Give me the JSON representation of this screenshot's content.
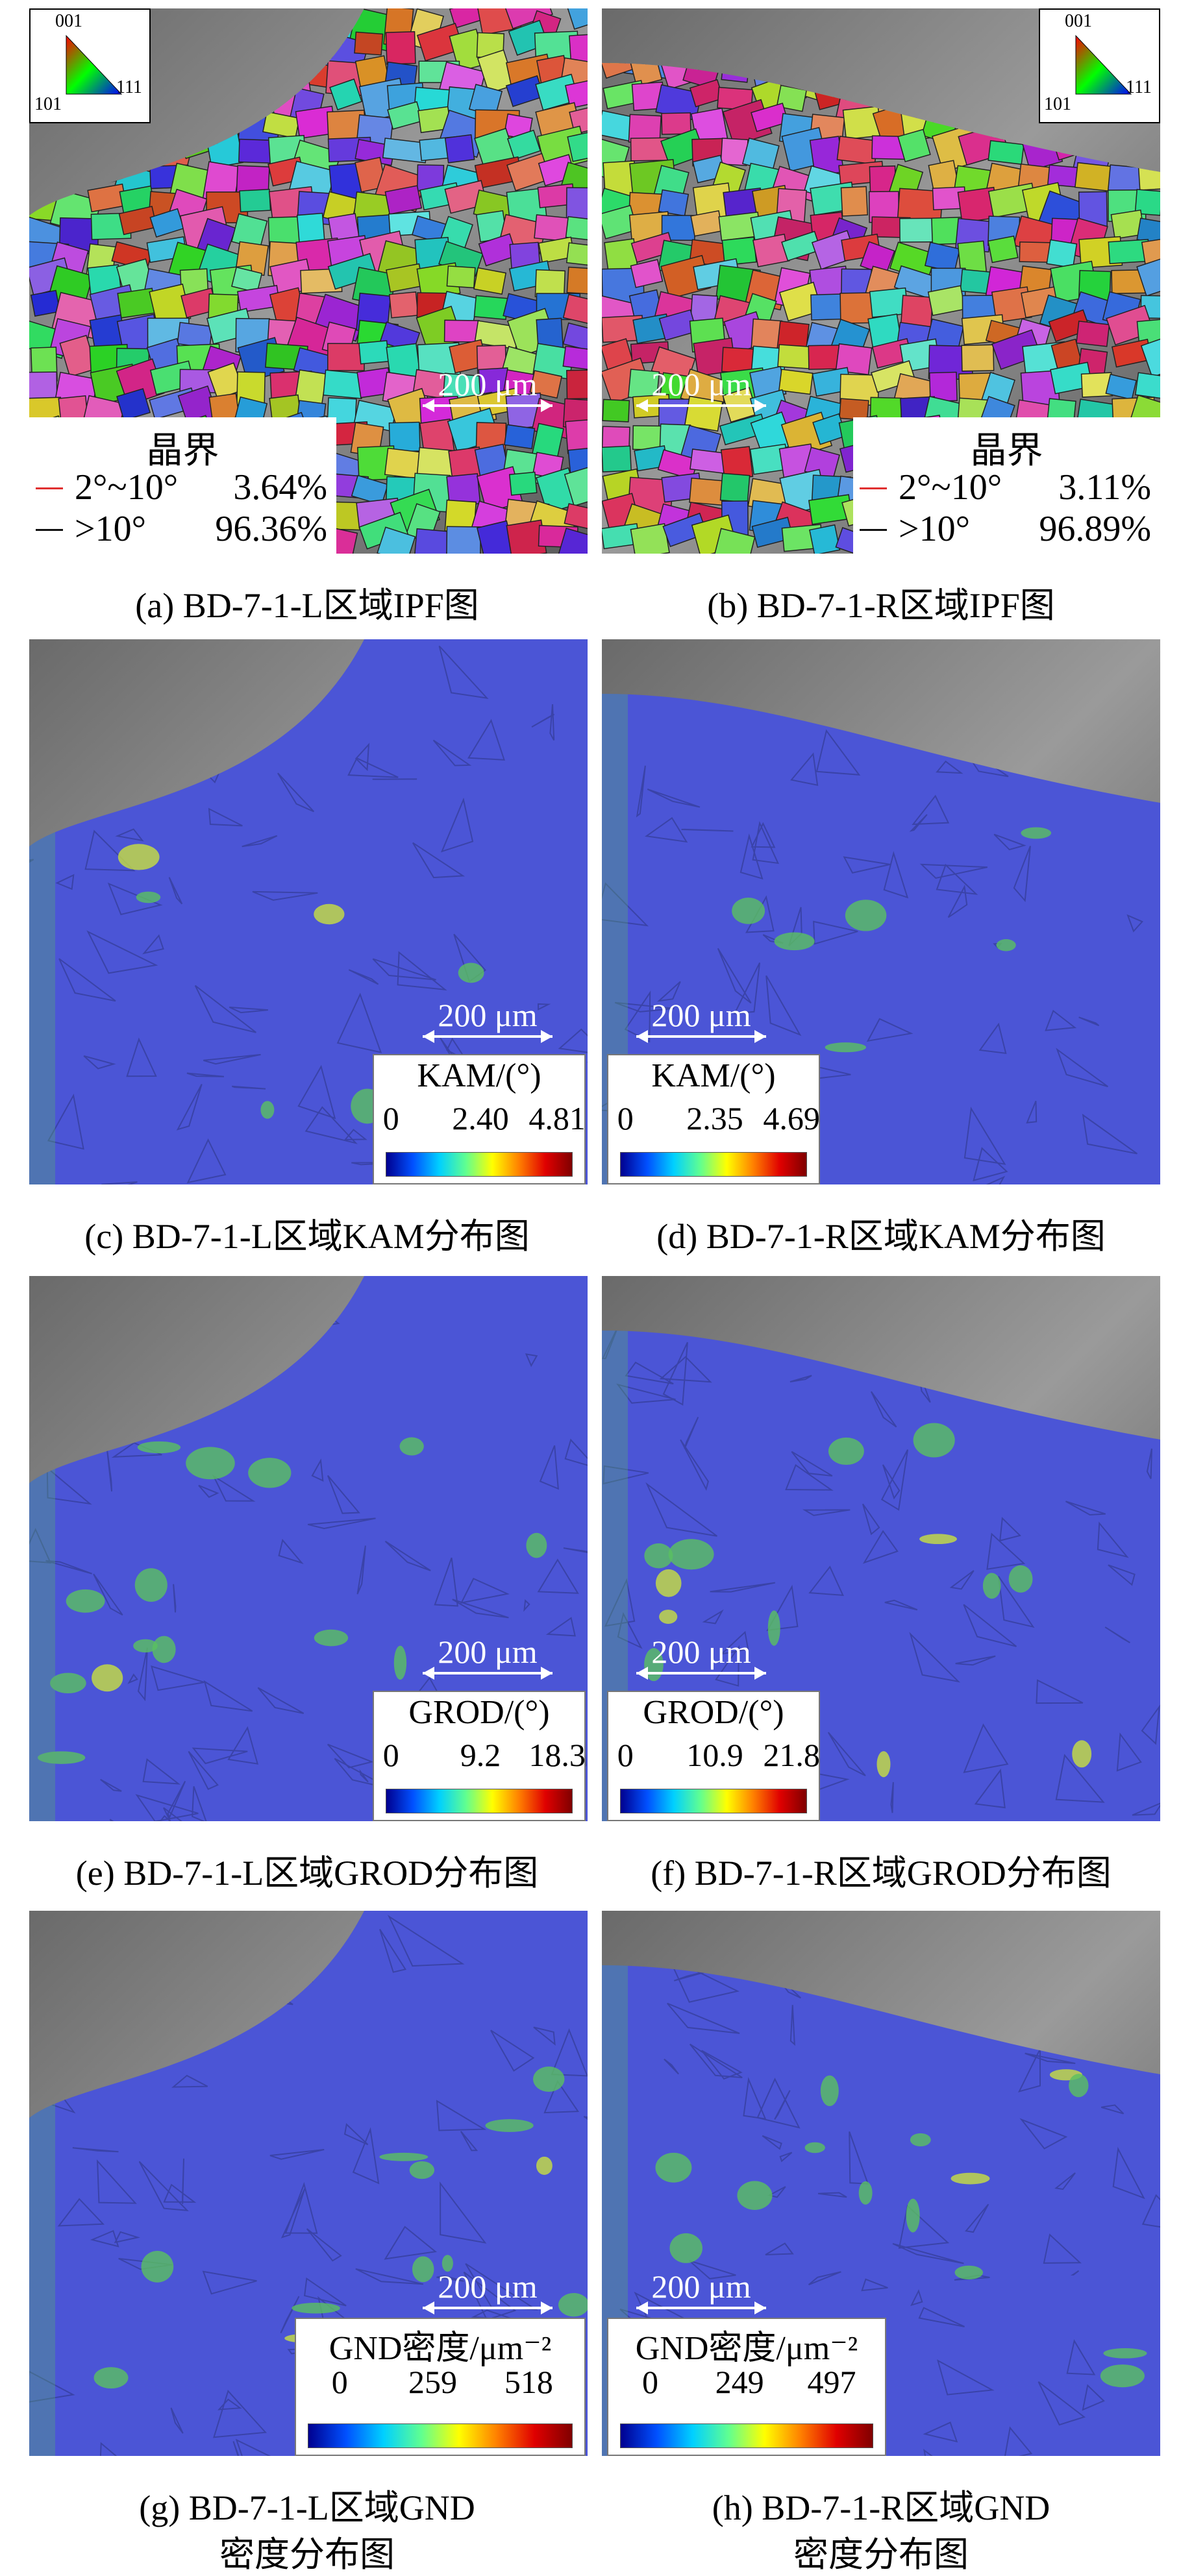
{
  "panels": [
    {
      "caption": "(a) BD-7-1-L区域IPF图",
      "scale_bar": "200 μm",
      "ipf_key": [
        "001",
        "101",
        "111"
      ],
      "legend": {
        "title": "晶界",
        "rows": [
          [
            "2°~10°",
            "3.64%"
          ],
          [
            ">10°",
            "96.36%"
          ]
        ]
      }
    },
    {
      "caption": "(b) BD-7-1-R区域IPF图",
      "scale_bar": "200 μm",
      "ipf_key": [
        "001",
        "101",
        "111"
      ],
      "legend": {
        "title": "晶界",
        "rows": [
          [
            "2°~10°",
            "3.11%"
          ],
          [
            ">10°",
            "96.89%"
          ]
        ]
      }
    },
    {
      "caption": "(c) BD-7-1-L区域KAM分布图",
      "scale_bar": "200 μm",
      "colorbar": {
        "title": "KAM/(°)",
        "ticks": [
          "0",
          "2.40",
          "4.81"
        ]
      }
    },
    {
      "caption": "(d) BD-7-1-R区域KAM分布图",
      "scale_bar": "200 μm",
      "colorbar": {
        "title": "KAM/(°)",
        "ticks": [
          "0",
          "2.35",
          "4.69"
        ]
      }
    },
    {
      "caption": "(e) BD-7-1-L区域GROD分布图",
      "scale_bar": "200 μm",
      "colorbar": {
        "title": "GROD/(°)",
        "ticks": [
          "0",
          "9.2",
          "18.3"
        ]
      }
    },
    {
      "caption": "(f) BD-7-1-R区域GROD分布图",
      "scale_bar": "200 μm",
      "colorbar": {
        "title": "GROD/(°)",
        "ticks": [
          "0",
          "10.9",
          "21.8"
        ]
      }
    },
    {
      "caption": [
        "(g) BD-7-1-L区域GND",
        "密度分布图"
      ],
      "scale_bar": "200 μm",
      "colorbar": {
        "title": "GND密度/μm⁻²",
        "ticks": [
          "0",
          "259",
          "518"
        ]
      }
    },
    {
      "caption": [
        "(h) BD-7-1-R区域GND",
        "密度分布图"
      ],
      "scale_bar": "200 μm",
      "colorbar": {
        "title": "GND密度/μm⁻²",
        "ticks": [
          "0",
          "249",
          "497"
        ]
      }
    }
  ]
}
